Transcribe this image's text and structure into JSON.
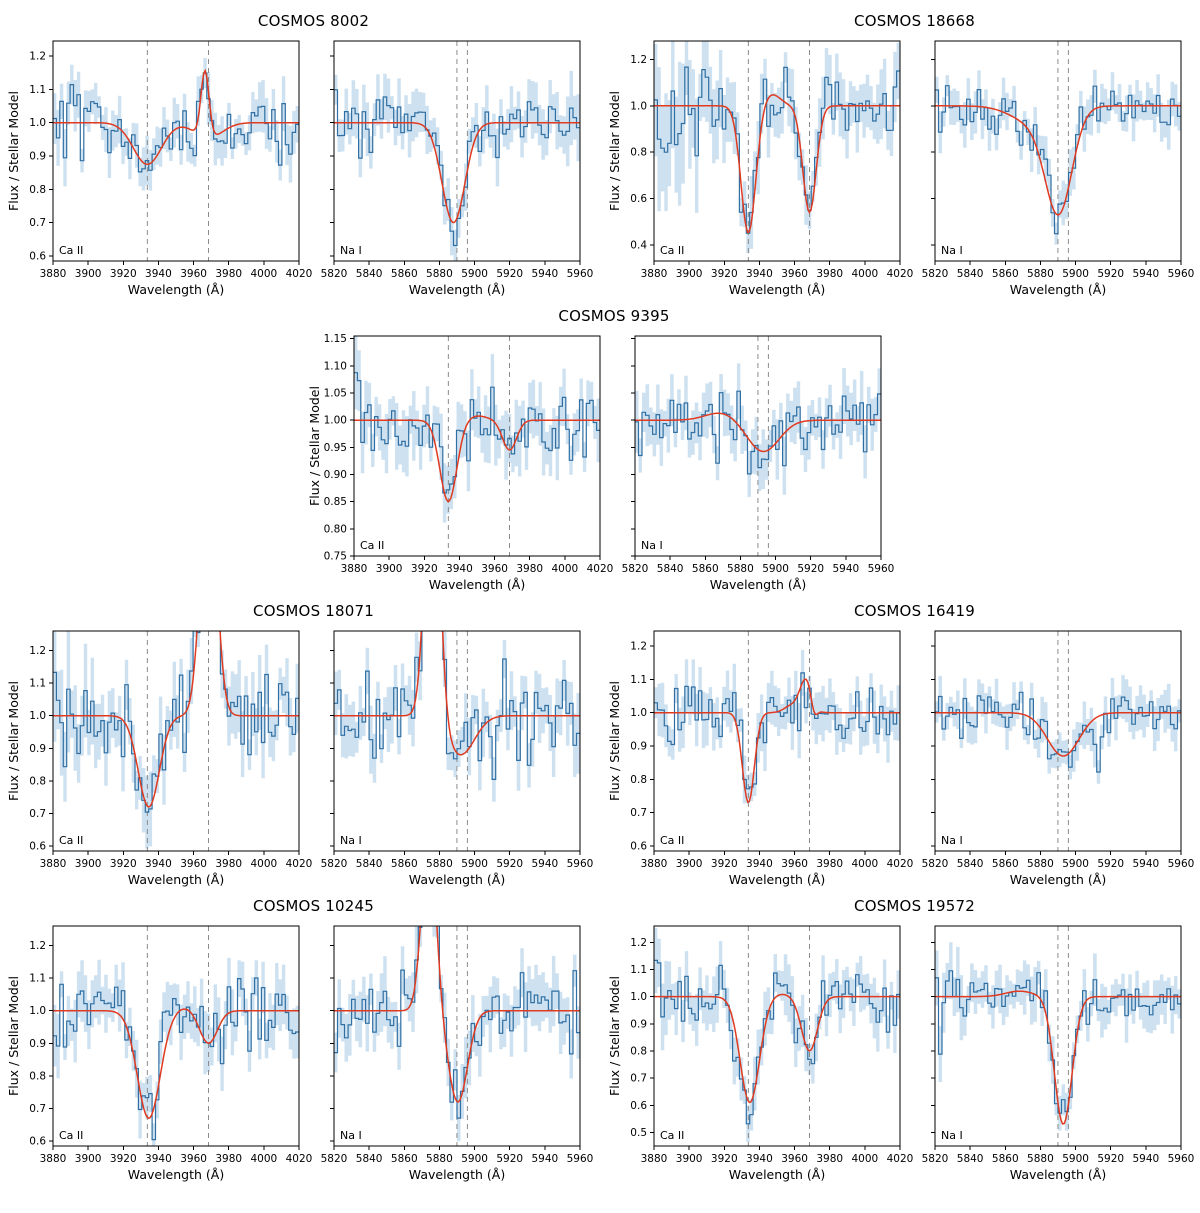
{
  "figure": {
    "background": "#ffffff",
    "colors": {
      "data": "#2f6fa3",
      "band": "#c2d9ec",
      "model": "#e03a20",
      "dashed": "#8c8c8c",
      "axis": "#000000",
      "text": "#000000"
    }
  },
  "chart_data": [
    {
      "type": "line",
      "title": "COSMOS 8002",
      "xlabel": "Wavelength (Å)",
      "ylabel": "Flux / Stellar Model",
      "ylim": [
        0.585,
        1.245
      ],
      "y_ticks": [
        0.6,
        0.7,
        0.8,
        0.9,
        1.0,
        1.1,
        1.2
      ],
      "grid": false,
      "legend": "none",
      "panels": [
        {
          "label": "Ca II",
          "xlim": [
            3880,
            4020
          ],
          "x_ticks": [
            3880,
            3900,
            3920,
            3940,
            3960,
            3980,
            4000,
            4020
          ],
          "dashed_lines": [
            3933.7,
            3968.5
          ],
          "model": [
            {
              "kind": "absorption",
              "center": 3933.7,
              "amp": -0.125,
              "sigma": 8
            },
            {
              "kind": "absorption",
              "center": 3968.5,
              "amp": -0.045,
              "sigma": 8
            },
            {
              "kind": "emission",
              "center": 3966.5,
              "amp": 0.2,
              "sigma": 2.3
            }
          ],
          "continuum": 1.0,
          "n_bins": 72,
          "noise_sigma": 0.05,
          "band_sigma": 0.055,
          "edge_boost": {
            "left": 1.35,
            "right": 1.15,
            "frac": 0.15
          },
          "seed": 101
        },
        {
          "label": "Na I",
          "xlim": [
            5820,
            5960
          ],
          "x_ticks": [
            5820,
            5840,
            5860,
            5880,
            5900,
            5920,
            5940,
            5960
          ],
          "dashed_lines": [
            5889.95,
            5895.92
          ],
          "model": [
            {
              "kind": "absorption",
              "center": 5888,
              "amp": -0.3,
              "sigma": 6.5
            }
          ],
          "continuum": 1.0,
          "n_bins": 70,
          "noise_sigma": 0.05,
          "band_sigma": 0.06,
          "edge_boost": {
            "right": 1.5,
            "frac": 0.15
          },
          "seed": 202
        }
      ]
    },
    {
      "type": "line",
      "title": "COSMOS 18668",
      "xlabel": "Wavelength (Å)",
      "ylabel": "Flux / Stellar Model",
      "ylim": [
        0.33,
        1.28
      ],
      "y_ticks": [
        0.4,
        0.6,
        0.8,
        1.0,
        1.2
      ],
      "grid": false,
      "legend": "none",
      "panels": [
        {
          "label": "Ca II",
          "xlim": [
            3880,
            4020
          ],
          "x_ticks": [
            3880,
            3900,
            3920,
            3940,
            3960,
            3980,
            4000,
            4020
          ],
          "dashed_lines": [
            3933.7,
            3968.5
          ],
          "model": [
            {
              "kind": "absorption",
              "center": 3933.7,
              "amp": -0.55,
              "sigma": 4.2
            },
            {
              "kind": "absorption",
              "center": 3968.5,
              "amp": -0.46,
              "sigma": 3.8
            },
            {
              "kind": "emission",
              "center": 3947,
              "amp": 0.05,
              "sigma": 5
            }
          ],
          "continuum": 1.0,
          "n_bins": 72,
          "noise_sigma": 0.08,
          "band_sigma": 0.11,
          "edge_boost": {
            "left": 2.6,
            "frac": 0.28
          },
          "seed": 303
        },
        {
          "label": "Na I",
          "xlim": [
            5820,
            5960
          ],
          "x_ticks": [
            5820,
            5840,
            5860,
            5880,
            5900,
            5920,
            5940,
            5960
          ],
          "dashed_lines": [
            5889.95,
            5895.92
          ],
          "model": [
            {
              "kind": "absorption",
              "center": 5890.5,
              "amp": -0.42,
              "sigma": 7.5
            },
            {
              "kind": "absorption",
              "center": 5878,
              "amp": -0.08,
              "sigma": 13
            }
          ],
          "continuum": 1.0,
          "n_bins": 70,
          "noise_sigma": 0.05,
          "band_sigma": 0.07,
          "edge_boost": {
            "left": 1.2,
            "right": 1.25,
            "frac": 0.15
          },
          "seed": 404
        }
      ]
    },
    {
      "type": "line",
      "title": "COSMOS 9395",
      "xlabel": "Wavelength (Å)",
      "ylabel": "Flux / Stellar Model",
      "ylim": [
        0.75,
        1.155
      ],
      "y_ticks": [
        0.75,
        0.8,
        0.85,
        0.9,
        0.95,
        1.0,
        1.05,
        1.1,
        1.15
      ],
      "grid": false,
      "legend": "none",
      "panels": [
        {
          "label": "Ca II",
          "xlim": [
            3880,
            4020
          ],
          "x_ticks": [
            3880,
            3900,
            3920,
            3940,
            3960,
            3980,
            4000,
            4020
          ],
          "dashed_lines": [
            3933.7,
            3968.5
          ],
          "model": [
            {
              "kind": "absorption",
              "center": 3933.7,
              "amp": -0.15,
              "sigma": 4.8
            },
            {
              "kind": "absorption",
              "center": 3968.5,
              "amp": -0.055,
              "sigma": 4
            },
            {
              "kind": "emission",
              "center": 3950,
              "amp": 0.008,
              "sigma": 6
            }
          ],
          "continuum": 1.0,
          "n_bins": 72,
          "noise_sigma": 0.034,
          "band_sigma": 0.045,
          "edge_boost": {
            "left": 1.5,
            "frac": 0.12
          },
          "seed": 505
        },
        {
          "label": "Na I",
          "xlim": [
            5820,
            5960
          ],
          "x_ticks": [
            5820,
            5840,
            5860,
            5880,
            5900,
            5920,
            5940,
            5960
          ],
          "dashed_lines": [
            5889.95,
            5895.92
          ],
          "model": [
            {
              "kind": "absorption",
              "center": 5893,
              "amp": -0.058,
              "sigma": 9
            },
            {
              "kind": "emission",
              "center": 5869,
              "amp": 0.014,
              "sigma": 9
            }
          ],
          "continuum": 1.0,
          "n_bins": 70,
          "noise_sigma": 0.03,
          "band_sigma": 0.042,
          "seed": 606
        }
      ]
    },
    {
      "type": "line",
      "title": "COSMOS 18071",
      "xlabel": "Wavelength (Å)",
      "ylabel": "Flux / Stellar Model",
      "ylim": [
        0.585,
        1.26
      ],
      "y_ticks": [
        0.6,
        0.7,
        0.8,
        0.9,
        1.0,
        1.1,
        1.2
      ],
      "grid": false,
      "legend": "none",
      "panels": [
        {
          "label": "Ca II",
          "xlim": [
            3880,
            4020
          ],
          "x_ticks": [
            3880,
            3900,
            3920,
            3940,
            3960,
            3980,
            4000,
            4020
          ],
          "dashed_lines": [
            3933.7,
            3968.5
          ],
          "model": [
            {
              "kind": "absorption",
              "center": 3934.5,
              "amp": -0.28,
              "sigma": 6
            },
            {
              "kind": "emission",
              "center": 3968.5,
              "amp": 0.75,
              "sigma": 4.5
            }
          ],
          "continuum": 1.0,
          "n_bins": 72,
          "noise_sigma": 0.065,
          "band_sigma": 0.08,
          "edge_boost": {
            "left": 2.0,
            "frac": 0.2
          },
          "seed": 707
        },
        {
          "label": "Na I",
          "xlim": [
            5820,
            5960
          ],
          "x_ticks": [
            5820,
            5840,
            5860,
            5880,
            5900,
            5920,
            5940,
            5960
          ],
          "dashed_lines": [
            5889.95,
            5895.92
          ],
          "model": [
            {
              "kind": "emission",
              "center": 5876,
              "amp": 0.9,
              "sigma": 4
            },
            {
              "kind": "absorption",
              "center": 5892,
              "amp": -0.12,
              "sigma": 8
            }
          ],
          "continuum": 1.0,
          "n_bins": 70,
          "noise_sigma": 0.06,
          "band_sigma": 0.075,
          "edge_boost": {
            "right": 1.3,
            "frac": 0.12
          },
          "seed": 808
        }
      ]
    },
    {
      "type": "line",
      "title": "COSMOS 16419",
      "xlabel": "Wavelength (Å)",
      "ylabel": "Flux / Stellar Model",
      "ylim": [
        0.585,
        1.245
      ],
      "y_ticks": [
        0.6,
        0.7,
        0.8,
        0.9,
        1.0,
        1.1,
        1.2
      ],
      "grid": false,
      "legend": "none",
      "panels": [
        {
          "label": "Ca II",
          "xlim": [
            3880,
            4020
          ],
          "x_ticks": [
            3880,
            3900,
            3920,
            3940,
            3960,
            3980,
            4000,
            4020
          ],
          "dashed_lines": [
            3933.7,
            3968.5
          ],
          "model": [
            {
              "kind": "absorption",
              "center": 3933.7,
              "amp": -0.27,
              "sigma": 3.4
            },
            {
              "kind": "emission",
              "center": 3966.5,
              "amp": 0.1,
              "sigma": 3.5
            },
            {
              "kind": "absorption",
              "center": 3971,
              "amp": -0.04,
              "sigma": 1.8
            },
            {
              "kind": "emission",
              "center": 3958,
              "amp": 0.02,
              "sigma": 4
            }
          ],
          "continuum": 1.0,
          "n_bins": 72,
          "noise_sigma": 0.05,
          "band_sigma": 0.06,
          "edge_boost": {
            "left": 1.3,
            "frac": 0.15
          },
          "seed": 909
        },
        {
          "label": "Na I",
          "xlim": [
            5820,
            5960
          ],
          "x_ticks": [
            5820,
            5840,
            5860,
            5880,
            5900,
            5920,
            5940,
            5960
          ],
          "dashed_lines": [
            5889.95,
            5895.92
          ],
          "model": [
            {
              "kind": "absorption",
              "center": 5893,
              "amp": -0.13,
              "sigma": 9
            }
          ],
          "continuum": 1.0,
          "n_bins": 70,
          "noise_sigma": 0.04,
          "band_sigma": 0.05,
          "seed": 111
        }
      ]
    },
    {
      "type": "line",
      "title": "COSMOS 10245",
      "xlabel": "Wavelength (Å)",
      "ylabel": "Flux / Stellar Model",
      "ylim": [
        0.585,
        1.26
      ],
      "y_ticks": [
        0.6,
        0.7,
        0.8,
        0.9,
        1.0,
        1.1,
        1.2
      ],
      "grid": false,
      "legend": "none",
      "panels": [
        {
          "label": "Ca II",
          "xlim": [
            3880,
            4020
          ],
          "x_ticks": [
            3880,
            3900,
            3920,
            3940,
            3960,
            3980,
            4000,
            4020
          ],
          "dashed_lines": [
            3933.7,
            3968.5
          ],
          "model": [
            {
              "kind": "absorption",
              "center": 3934.5,
              "amp": -0.33,
              "sigma": 6.5
            },
            {
              "kind": "absorption",
              "center": 3968.5,
              "amp": -0.1,
              "sigma": 5
            },
            {
              "kind": "emission",
              "center": 3955,
              "amp": 0.01,
              "sigma": 5
            }
          ],
          "continuum": 1.0,
          "n_bins": 72,
          "noise_sigma": 0.058,
          "band_sigma": 0.07,
          "seed": 222
        },
        {
          "label": "Na I",
          "xlim": [
            5820,
            5960
          ],
          "x_ticks": [
            5820,
            5840,
            5860,
            5880,
            5900,
            5920,
            5940,
            5960
          ],
          "dashed_lines": [
            5889.95,
            5895.92
          ],
          "model": [
            {
              "kind": "emission",
              "center": 5874,
              "amp": 0.55,
              "sigma": 4
            },
            {
              "kind": "absorption",
              "center": 5890.5,
              "amp": -0.28,
              "sigma": 5.5
            }
          ],
          "continuum": 1.0,
          "n_bins": 70,
          "noise_sigma": 0.06,
          "band_sigma": 0.075,
          "edge_boost": {
            "left": 1.25,
            "frac": 0.12
          },
          "seed": 333
        }
      ]
    },
    {
      "type": "line",
      "title": "COSMOS 19572",
      "xlabel": "Wavelength (Å)",
      "ylabel": "Flux / Stellar Model",
      "ylim": [
        0.45,
        1.26
      ],
      "y_ticks": [
        0.5,
        0.6,
        0.7,
        0.8,
        0.9,
        1.0,
        1.1,
        1.2
      ],
      "grid": false,
      "legend": "none",
      "panels": [
        {
          "label": "Ca II",
          "xlim": [
            3880,
            4020
          ],
          "x_ticks": [
            3880,
            3900,
            3920,
            3940,
            3960,
            3980,
            4000,
            4020
          ],
          "dashed_lines": [
            3933.7,
            3968.5
          ],
          "model": [
            {
              "kind": "absorption",
              "center": 3934.5,
              "amp": -0.39,
              "sigma": 5.5
            },
            {
              "kind": "absorption",
              "center": 3968.5,
              "amp": -0.2,
              "sigma": 4.5
            },
            {
              "kind": "emission",
              "center": 3952,
              "amp": 0.01,
              "sigma": 5
            }
          ],
          "continuum": 1.0,
          "n_bins": 72,
          "noise_sigma": 0.06,
          "band_sigma": 0.08,
          "edge_boost": {
            "left": 1.3,
            "frac": 0.12
          },
          "seed": 444
        },
        {
          "label": "Na I",
          "xlim": [
            5820,
            5960
          ],
          "x_ticks": [
            5820,
            5840,
            5860,
            5880,
            5900,
            5920,
            5940,
            5960
          ],
          "dashed_lines": [
            5889.95,
            5895.92
          ],
          "model": [
            {
              "kind": "absorption",
              "center": 5893,
              "amp": -0.47,
              "sigma": 5
            },
            {
              "kind": "emission",
              "center": 5868,
              "amp": 0.02,
              "sigma": 8
            }
          ],
          "continuum": 1.0,
          "n_bins": 70,
          "noise_sigma": 0.05,
          "band_sigma": 0.07,
          "edge_boost": {
            "left": 1.5,
            "frac": 0.18
          },
          "seed": 555
        }
      ]
    }
  ]
}
